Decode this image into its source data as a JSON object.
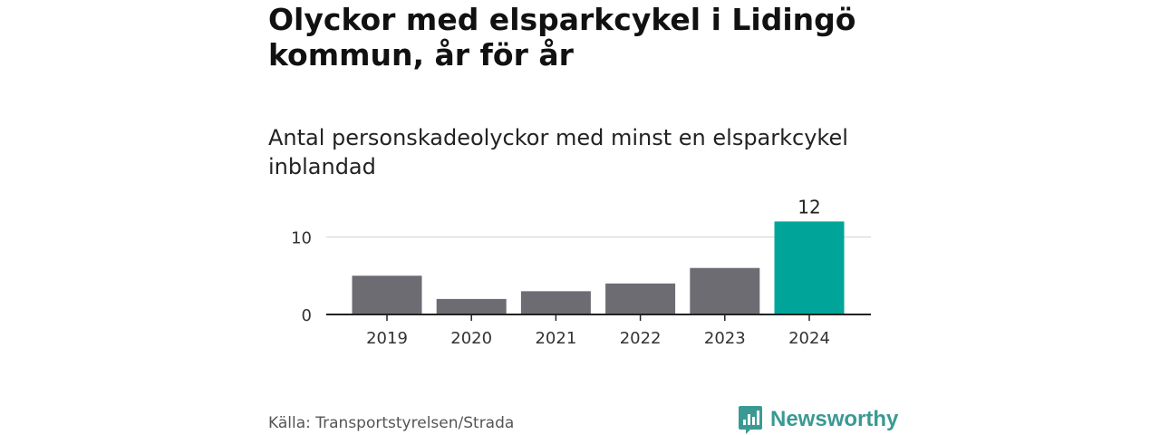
{
  "title": "Olyckor med elsparkcykel i Lidingö kommun, år för år",
  "subtitle": "Antal personskadeolyckor med minst en elsparkcykel inblandad",
  "source": "Källa: Transportstyrelsen/Strada",
  "brand": "Newsworthy",
  "colors": {
    "bar_default": "#6d6c73",
    "bar_highlight": "#00a499",
    "brand": "#3a9a93",
    "gridline": "#d9d9d9",
    "axis": "#222222"
  },
  "chart_data": {
    "type": "bar",
    "categories": [
      "2019",
      "2020",
      "2021",
      "2022",
      "2023",
      "2024"
    ],
    "values": [
      5,
      2,
      3,
      4,
      6,
      12
    ],
    "highlight_index": 5,
    "data_labels": [
      {
        "index": 5,
        "text": "12"
      }
    ],
    "yticks": [
      0,
      10
    ],
    "ylim": [
      0,
      12
    ],
    "grid": true,
    "legend": "none"
  }
}
